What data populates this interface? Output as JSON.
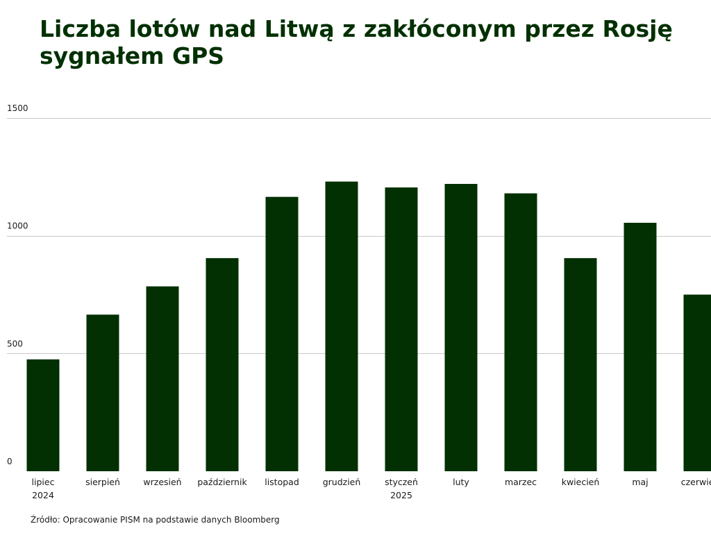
{
  "chart_data": {
    "type": "bar",
    "title_lines": [
      "Liczba lotów nad Litwą z zakłóconym przez Rosję",
      "sygnałem GPS"
    ],
    "categories": [
      [
        "lipiec",
        "2024"
      ],
      [
        "sierpień"
      ],
      [
        "wrzesień"
      ],
      [
        "październik"
      ],
      [
        "listopad"
      ],
      [
        "grudzień"
      ],
      [
        "styczeń",
        "2025"
      ],
      [
        "luty"
      ],
      [
        "marzec"
      ],
      [
        "kwiecień"
      ],
      [
        "maj"
      ],
      [
        "czerwiec"
      ]
    ],
    "values": [
      475,
      665,
      785,
      905,
      1165,
      1230,
      1205,
      1220,
      1180,
      905,
      1055,
      750
    ],
    "yticks": [
      "0",
      "500",
      "1000",
      "1500"
    ],
    "ylim": [
      0,
      1500
    ],
    "grid": true,
    "bar_color": "#023002",
    "grid_color": "#c8c8c8"
  },
  "source": "Źródło: Opracowanie PISM na podstawie danych Bloomberg"
}
